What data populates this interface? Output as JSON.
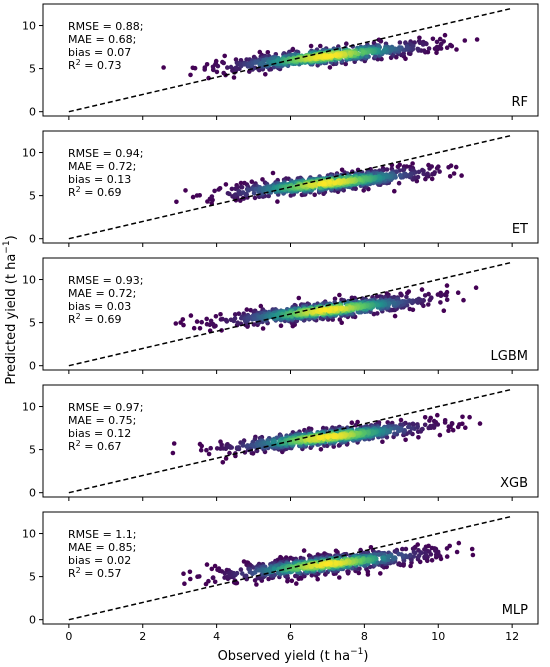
{
  "figure": {
    "xlabel_text": "Observed yield (t ha",
    "xlabel_sup": "−1",
    "xlabel_close": ")",
    "ylabel_text": "Predicted yield (t ha",
    "ylabel_sup": "−1",
    "ylabel_close": ")"
  },
  "chart_data": [
    {
      "type": "scatter",
      "panel_label": "RF",
      "stats": [
        "RMSE = 0.88;",
        "MAE = 0.68;",
        "bias = 0.07"
      ],
      "r2_value": "= 0.73",
      "slope": 1.0,
      "noise": 0.85,
      "xlim": [
        -0.7,
        12.7
      ],
      "ylim": [
        -0.5,
        12.5
      ],
      "xticks": [
        0,
        2,
        4,
        6,
        8,
        10,
        12
      ],
      "yticks": [
        0,
        5,
        10
      ],
      "reference_line": "1:1 dashed"
    },
    {
      "type": "scatter",
      "panel_label": "ET",
      "stats": [
        "RMSE = 0.94;",
        "MAE = 0.72;",
        "bias = 0.13"
      ],
      "r2_value": "= 0.69",
      "slope": 1.0,
      "noise": 0.9,
      "xlim": [
        -0.7,
        12.7
      ],
      "ylim": [
        -0.5,
        12.5
      ],
      "xticks": [
        0,
        2,
        4,
        6,
        8,
        10,
        12
      ],
      "yticks": [
        0,
        5,
        10
      ],
      "reference_line": "1:1 dashed"
    },
    {
      "type": "scatter",
      "panel_label": "LGBM",
      "stats": [
        "RMSE = 0.93;",
        "MAE = 0.72;",
        "bias = 0.03"
      ],
      "r2_value": "= 0.69",
      "slope": 1.0,
      "noise": 0.92,
      "xlim": [
        -0.7,
        12.7
      ],
      "ylim": [
        -0.5,
        12.5
      ],
      "xticks": [
        0,
        2,
        4,
        6,
        8,
        10,
        12
      ],
      "yticks": [
        0,
        5,
        10
      ],
      "reference_line": "1:1 dashed"
    },
    {
      "type": "scatter",
      "panel_label": "XGB",
      "stats": [
        "RMSE = 0.97;",
        "MAE = 0.75;",
        "bias = 0.12"
      ],
      "r2_value": "= 0.67",
      "slope": 1.0,
      "noise": 0.95,
      "xlim": [
        -0.7,
        12.7
      ],
      "ylim": [
        -0.5,
        12.5
      ],
      "xticks": [
        0,
        2,
        4,
        6,
        8,
        10,
        12
      ],
      "yticks": [
        0,
        5,
        10
      ],
      "reference_line": "1:1 dashed"
    },
    {
      "type": "scatter",
      "panel_label": "MLP",
      "stats": [
        "RMSE = 1.1;",
        "MAE = 0.85;",
        "bias = 0.02"
      ],
      "r2_value": "= 0.57",
      "slope": 1.0,
      "noise": 1.1,
      "xlim": [
        -0.7,
        12.7
      ],
      "ylim": [
        -0.5,
        12.5
      ],
      "xticks": [
        0,
        2,
        4,
        6,
        8,
        10,
        12
      ],
      "yticks": [
        0,
        5,
        10
      ],
      "reference_line": "1:1 dashed"
    }
  ],
  "colors": {
    "colormap": [
      "#440154",
      "#3b528b",
      "#21918c",
      "#5ec962",
      "#fde725"
    ],
    "reference_line": "#000000",
    "frame": "#000000"
  }
}
